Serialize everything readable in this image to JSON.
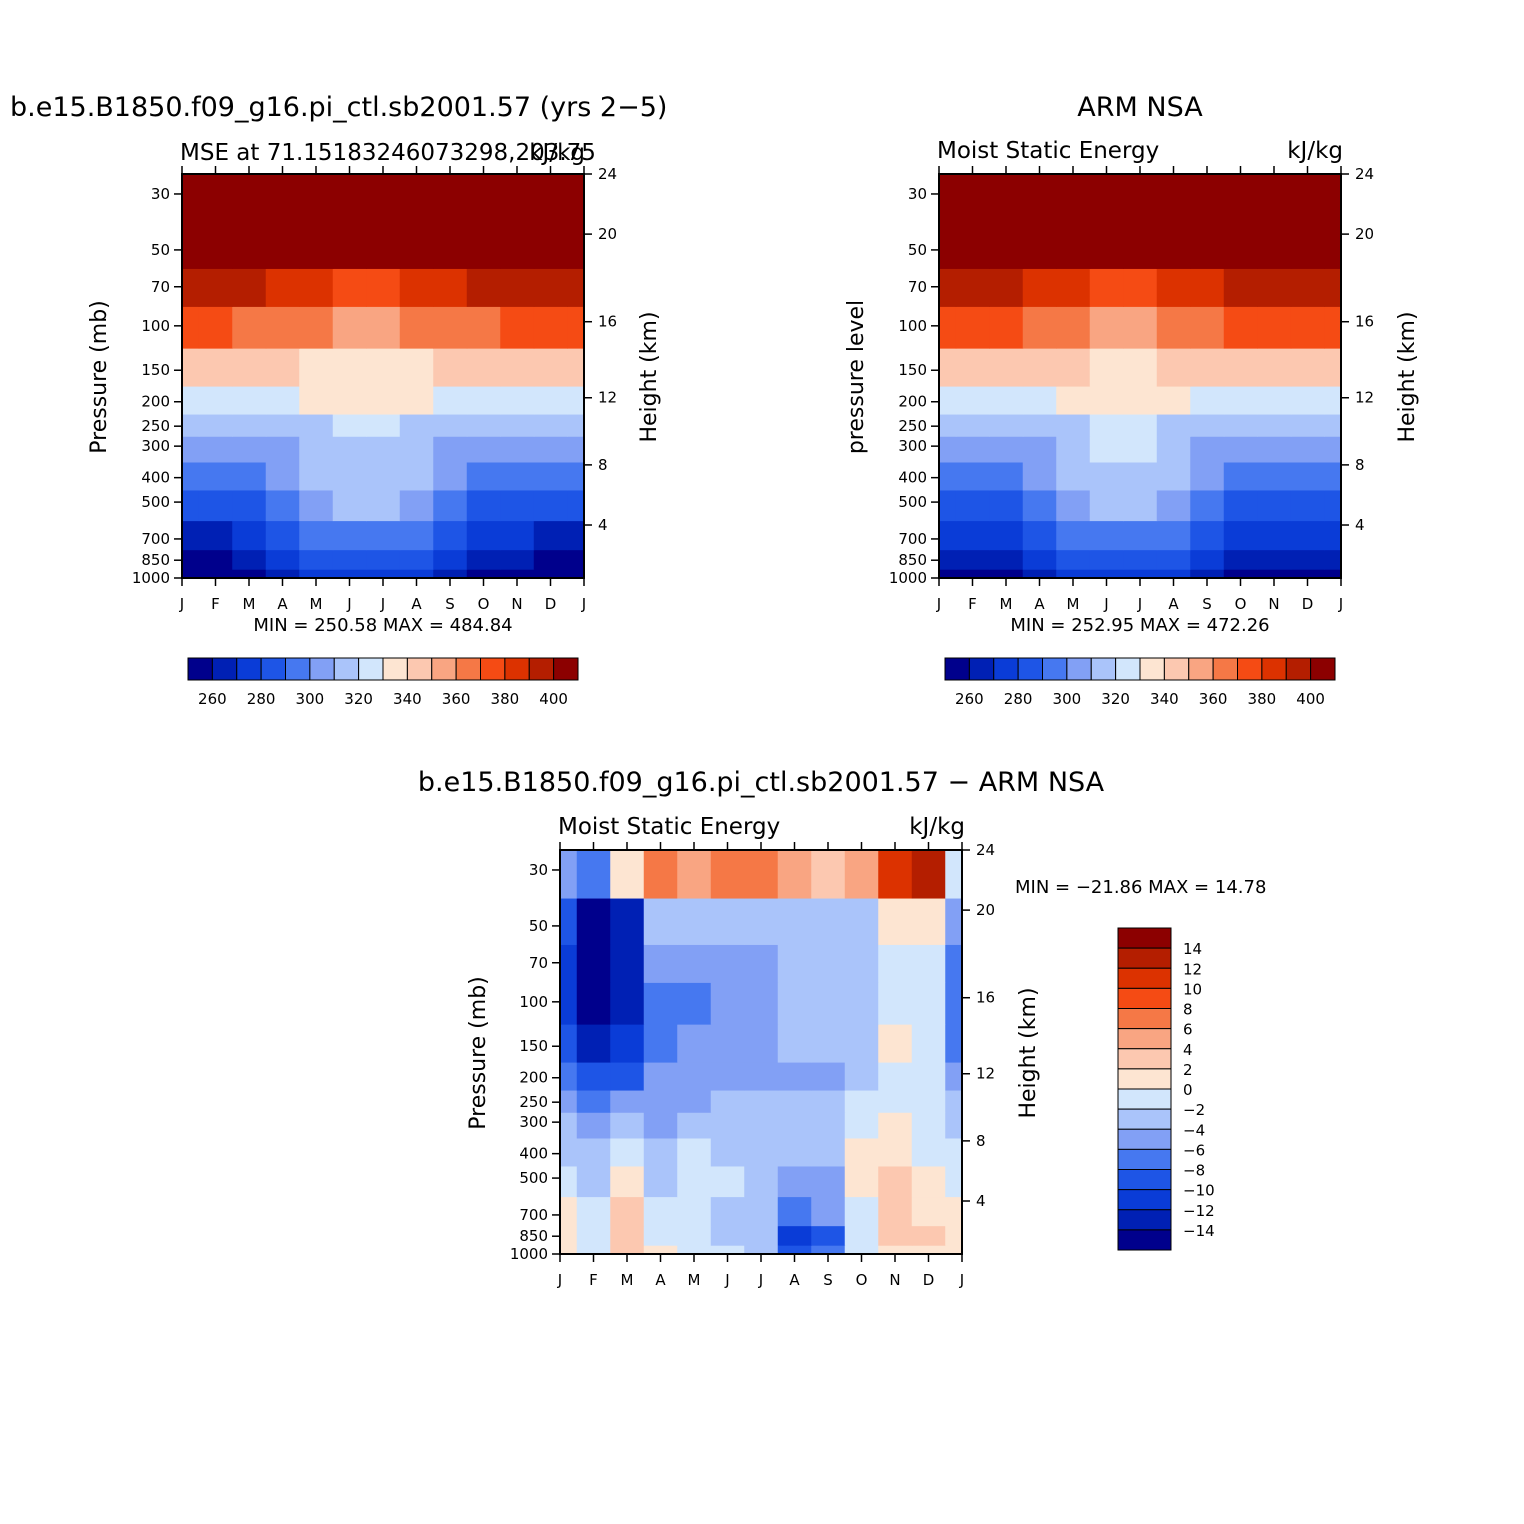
{
  "panels": [
    {
      "main_title": "b.e15.B1850.f09_g16.pi_ctl.sb2001.57 (yrs 2−5)",
      "left_string": "MSE at 71.15183246073298,203.75",
      "right_string": "kJ/kg",
      "ylabel": "Pressure (mb)",
      "ylabel_right": "Height (km)",
      "minmax": "MIN = 250.58 MAX = 484.84"
    },
    {
      "main_title": "ARM NSA",
      "left_string": "Moist Static Energy",
      "right_string": "kJ/kg",
      "ylabel": "pressure level",
      "ylabel_right": "Height (km)",
      "minmax": "MIN = 252.95 MAX = 472.26"
    },
    {
      "main_title": "b.e15.B1850.f09_g16.pi_ctl.sb2001.57 − ARM NSA",
      "left_string": "Moist Static Energy",
      "right_string": "kJ/kg",
      "ylabel": "Pressure (mb)",
      "ylabel_right": "Height (km)",
      "minmax": "MIN = −21.86 MAX =   14.78"
    }
  ],
  "chart_data": [
    {
      "type": "heatmap",
      "title": "b.e15.B1850.f09_g16.pi_ctl.sb2001.57 (yrs 2−5)",
      "subtitle": "MSE at 71.15183246073298,203.75",
      "units": "kJ/kg",
      "x_ticks": [
        "J",
        "F",
        "M",
        "A",
        "M",
        "J",
        "J",
        "A",
        "S",
        "O",
        "N",
        "D",
        "J"
      ],
      "y_ticks": [
        30,
        50,
        70,
        100,
        150,
        200,
        250,
        300,
        400,
        500,
        700,
        850,
        1000
      ],
      "y_scale": "log",
      "ylim": [
        1000,
        25
      ],
      "y_right_ticks": [
        4,
        8,
        12,
        16,
        20,
        24
      ],
      "pressure_levels": [
        1000,
        850,
        700,
        500,
        400,
        300,
        250,
        200,
        150,
        100,
        70,
        50,
        30
      ],
      "values": [
        [
          252,
          252,
          255,
          262,
          272,
          278,
          278,
          272,
          262,
          258,
          254,
          252,
          252
        ],
        [
          258,
          258,
          262,
          270,
          280,
          287,
          287,
          280,
          270,
          264,
          260,
          258,
          258
        ],
        [
          268,
          268,
          272,
          280,
          290,
          297,
          297,
          290,
          281,
          274,
          270,
          268,
          268
        ],
        [
          283,
          283,
          286,
          293,
          305,
          314,
          314,
          305,
          294,
          287,
          284,
          283,
          283
        ],
        [
          292,
          292,
          295,
          300,
          310,
          318,
          318,
          310,
          300,
          295,
          293,
          292,
          292
        ],
        [
          304,
          304,
          306,
          308,
          313,
          319,
          319,
          313,
          308,
          306,
          305,
          304,
          304
        ],
        [
          312,
          312,
          313,
          314,
          317,
          321,
          321,
          317,
          314,
          313,
          312,
          312,
          312
        ],
        [
          324,
          324,
          326,
          328,
          330,
          332,
          332,
          330,
          328,
          326,
          325,
          324,
          324
        ],
        [
          343,
          343,
          342,
          340,
          338,
          336,
          336,
          338,
          340,
          342,
          343,
          343,
          343
        ],
        [
          372,
          372,
          369,
          364,
          360,
          357,
          357,
          360,
          364,
          368,
          371,
          372,
          372
        ],
        [
          396,
          396,
          392,
          385,
          380,
          377,
          377,
          380,
          385,
          390,
          394,
          396,
          396
        ],
        [
          420,
          420,
          416,
          410,
          405,
          402,
          402,
          405,
          410,
          414,
          418,
          420,
          420
        ],
        [
          460,
          460,
          456,
          450,
          445,
          442,
          442,
          445,
          450,
          454,
          458,
          460,
          460
        ]
      ],
      "levels": [
        260,
        270,
        280,
        290,
        300,
        310,
        320,
        330,
        340,
        350,
        360,
        370,
        380,
        390,
        400
      ],
      "colorbar_labels": [
        260,
        280,
        300,
        320,
        340,
        360,
        380,
        400
      ],
      "min": 250.58,
      "max": 484.84
    },
    {
      "type": "heatmap",
      "title": "ARM NSA",
      "subtitle": "Moist Static Energy",
      "units": "kJ/kg",
      "x_ticks": [
        "J",
        "F",
        "M",
        "A",
        "M",
        "J",
        "J",
        "A",
        "S",
        "O",
        "N",
        "D",
        "J"
      ],
      "y_ticks": [
        30,
        50,
        70,
        100,
        150,
        200,
        250,
        300,
        400,
        500,
        700,
        850,
        1000
      ],
      "y_scale": "log",
      "ylim": [
        1000,
        25
      ],
      "y_right_ticks": [
        4,
        8,
        12,
        16,
        20,
        24
      ],
      "pressure_levels": [
        1000,
        850,
        700,
        500,
        400,
        300,
        250,
        200,
        150,
        100,
        70,
        50,
        30
      ],
      "values": [
        [
          254,
          254,
          257,
          264,
          273,
          279,
          279,
          273,
          264,
          259,
          255,
          254,
          254
        ],
        [
          260,
          260,
          263,
          271,
          281,
          288,
          288,
          281,
          271,
          265,
          261,
          260,
          260
        ],
        [
          270,
          270,
          273,
          281,
          291,
          298,
          298,
          291,
          282,
          275,
          271,
          270,
          270
        ],
        [
          285,
          285,
          287,
          294,
          306,
          314,
          314,
          306,
          295,
          288,
          285,
          285,
          285
        ],
        [
          294,
          294,
          296,
          301,
          311,
          319,
          319,
          311,
          301,
          296,
          294,
          294,
          294
        ],
        [
          306,
          306,
          307,
          309,
          314,
          320,
          320,
          314,
          309,
          307,
          306,
          306,
          306
        ],
        [
          314,
          314,
          314,
          315,
          318,
          322,
          322,
          318,
          315,
          314,
          313,
          314,
          314
        ],
        [
          326,
          326,
          327,
          329,
          331,
          333,
          333,
          331,
          329,
          327,
          326,
          326,
          326
        ],
        [
          345,
          345,
          344,
          342,
          340,
          338,
          338,
          340,
          342,
          344,
          345,
          345,
          345
        ],
        [
          374,
          374,
          371,
          366,
          362,
          359,
          359,
          362,
          366,
          370,
          373,
          374,
          374
        ],
        [
          398,
          398,
          394,
          387,
          382,
          379,
          379,
          382,
          387,
          392,
          396,
          398,
          398
        ],
        [
          422,
          422,
          418,
          412,
          407,
          404,
          404,
          407,
          412,
          416,
          420,
          422,
          422
        ],
        [
          462,
          462,
          458,
          452,
          447,
          444,
          444,
          447,
          452,
          456,
          460,
          462,
          462
        ]
      ],
      "levels": [
        260,
        270,
        280,
        290,
        300,
        310,
        320,
        330,
        340,
        350,
        360,
        370,
        380,
        390,
        400
      ],
      "colorbar_labels": [
        260,
        280,
        300,
        320,
        340,
        360,
        380,
        400
      ],
      "min": 252.95,
      "max": 472.26
    },
    {
      "type": "heatmap",
      "title": "b.e15.B1850.f09_g16.pi_ctl.sb2001.57 − ARM NSA",
      "subtitle": "Moist Static Energy",
      "units": "kJ/kg",
      "x_ticks": [
        "J",
        "F",
        "M",
        "A",
        "M",
        "J",
        "J",
        "A",
        "S",
        "O",
        "N",
        "D",
        "J"
      ],
      "y_ticks": [
        30,
        50,
        70,
        100,
        150,
        200,
        250,
        300,
        400,
        500,
        700,
        850,
        1000
      ],
      "y_scale": "log",
      "ylim": [
        1000,
        25
      ],
      "y_right_ticks": [
        4,
        8,
        12,
        16,
        20,
        24
      ],
      "pressure_levels": [
        1000,
        850,
        700,
        500,
        400,
        300,
        250,
        200,
        150,
        100,
        70,
        50,
        30
      ],
      "values": [
        [
          0,
          -1,
          2,
          0,
          -1,
          -2,
          -3,
          -10,
          -8,
          -1,
          1,
          0,
          0
        ],
        [
          1,
          -1,
          3,
          -1,
          -2,
          -3,
          -3,
          -12,
          -9,
          -2,
          3,
          2,
          0
        ],
        [
          0,
          -2,
          2,
          -2,
          -1,
          -3,
          -3,
          -8,
          -6,
          -1,
          2,
          1,
          0
        ],
        [
          -2,
          -3,
          1,
          -3,
          -1,
          -2,
          -3,
          -6,
          -5,
          0,
          2,
          0,
          -1
        ],
        [
          -3,
          -4,
          -1,
          -4,
          -2,
          -3,
          -3,
          -4,
          -4,
          0,
          1,
          -1,
          -2
        ],
        [
          -4,
          -5,
          -3,
          -5,
          -4,
          -3,
          -4,
          -4,
          -4,
          -1,
          0,
          -2,
          -3
        ],
        [
          -6,
          -7,
          -6,
          -5,
          -5,
          -4,
          -4,
          -4,
          -4,
          -2,
          -1,
          -2,
          -4
        ],
        [
          -8,
          -10,
          -9,
          -6,
          -6,
          -5,
          -5,
          -5,
          -6,
          -3,
          -1,
          -2,
          -6
        ],
        [
          -10,
          -13,
          -11,
          -7,
          -6,
          -5,
          -5,
          -4,
          -4,
          -3,
          1,
          -1,
          -8
        ],
        [
          -11,
          -16,
          -13,
          -7,
          -7,
          -6,
          -5,
          -4,
          -4,
          -3,
          -1,
          -2,
          -8
        ],
        [
          -12,
          -18,
          -14,
          -6,
          -6,
          -6,
          -5,
          -4,
          -4,
          -3,
          -1,
          -1,
          -8
        ],
        [
          -10,
          -17,
          -13,
          -4,
          -4,
          -4,
          -4,
          -4,
          -4,
          -3,
          0,
          1,
          -6
        ],
        [
          -6,
          -8,
          1,
          6,
          5,
          6,
          7,
          5,
          2,
          4,
          10,
          12,
          -2
        ]
      ],
      "levels": [
        -14,
        -12,
        -10,
        -8,
        -6,
        -4,
        -2,
        0,
        2,
        4,
        6,
        8,
        10,
        12,
        14
      ],
      "colorbar_labels": [
        14,
        12,
        10,
        8,
        6,
        4,
        2,
        0,
        -2,
        -4,
        -6,
        -8,
        -10,
        -12,
        -14
      ],
      "min": -21.86,
      "max": 14.78
    }
  ],
  "palette": [
    "#00008c",
    "#0020b4",
    "#0a3cd7",
    "#1e55e6",
    "#4678f0",
    "#82a0f5",
    "#aac4fa",
    "#d2e6fc",
    "#fde5d2",
    "#fcc8b0",
    "#f9a582",
    "#f57846",
    "#f54b14",
    "#dc3200",
    "#b41e00",
    "#8c0000"
  ]
}
